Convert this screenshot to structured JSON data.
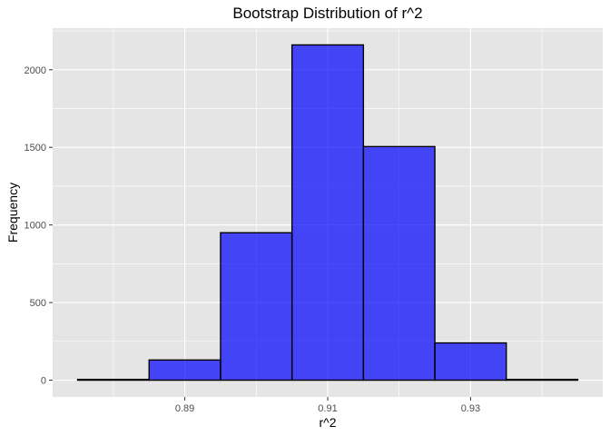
{
  "chart_data": {
    "type": "bar",
    "title": "Bootstrap Distribution of r^2",
    "xlabel": "r^2",
    "ylabel": "Frequency",
    "bin_width": 0.01,
    "bins": [
      {
        "x_start": 0.875,
        "x_end": 0.885,
        "count": 5
      },
      {
        "x_start": 0.885,
        "x_end": 0.895,
        "count": 130
      },
      {
        "x_start": 0.895,
        "x_end": 0.905,
        "count": 950
      },
      {
        "x_start": 0.905,
        "x_end": 0.915,
        "count": 2160
      },
      {
        "x_start": 0.915,
        "x_end": 0.925,
        "count": 1505
      },
      {
        "x_start": 0.925,
        "x_end": 0.935,
        "count": 240
      },
      {
        "x_start": 0.935,
        "x_end": 0.945,
        "count": 5
      }
    ],
    "x_ticks": [
      0.89,
      0.91,
      0.93
    ],
    "x_tick_labels": [
      "0.89",
      "0.91",
      "0.93"
    ],
    "x_minor_ticks": [
      0.88,
      0.9,
      0.92,
      0.94
    ],
    "y_ticks": [
      0,
      500,
      1000,
      1500,
      2000
    ],
    "y_tick_labels": [
      "0",
      "500",
      "1000",
      "1500",
      "2000"
    ],
    "y_minor_ticks": [
      250,
      750,
      1250,
      1750,
      2250
    ],
    "xlim": [
      0.8715,
      0.9485
    ],
    "ylim": [
      -108,
      2268
    ],
    "grid": true,
    "colors": {
      "fill": "#0000ff",
      "fill_opacity": 0.7,
      "outline": "#000000",
      "panel_background": "#e5e5e5",
      "grid": "#ffffff"
    }
  }
}
